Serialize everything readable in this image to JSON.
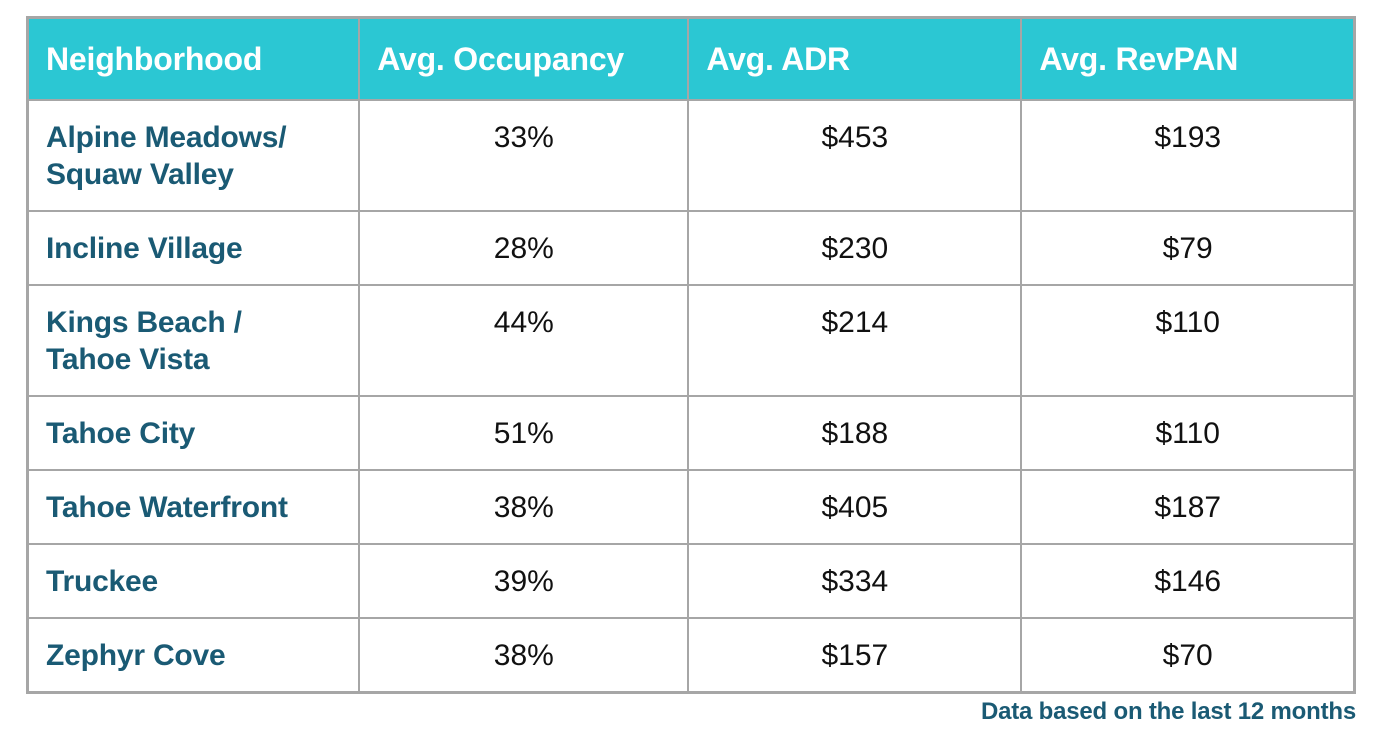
{
  "chart_data": {
    "type": "table",
    "columns": [
      "Neighborhood",
      "Avg. Occupancy",
      "Avg. ADR",
      "Avg. RevPAN"
    ],
    "rows": [
      {
        "neighborhood": "Alpine Meadows/\nSquaw Valley",
        "occupancy": "33%",
        "adr": "$453",
        "revpan": "$193"
      },
      {
        "neighborhood": "Incline Village",
        "occupancy": "28%",
        "adr": "$230",
        "revpan": "$79"
      },
      {
        "neighborhood": "Kings Beach /\nTahoe Vista",
        "occupancy": "44%",
        "adr": "$214",
        "revpan": "$110"
      },
      {
        "neighborhood": "Tahoe City",
        "occupancy": "51%",
        "adr": "$188",
        "revpan": "$110"
      },
      {
        "neighborhood": "Tahoe Waterfront",
        "occupancy": "38%",
        "adr": "$405",
        "revpan": "$187"
      },
      {
        "neighborhood": "Truckee",
        "occupancy": "39%",
        "adr": "$334",
        "revpan": "$146"
      },
      {
        "neighborhood": "Zephyr Cove",
        "occupancy": "38%",
        "adr": "$157",
        "revpan": "$70"
      }
    ],
    "numeric": {
      "occupancy_pct": [
        33,
        28,
        44,
        51,
        38,
        39,
        38
      ],
      "adr_usd": [
        453,
        230,
        214,
        188,
        405,
        334,
        157
      ],
      "revpan_usd": [
        193,
        79,
        110,
        110,
        187,
        146,
        70
      ]
    },
    "note": "Data based on the last 12 months"
  },
  "colors": {
    "header_bg": "#2bc7d3",
    "header_text": "#ffffff",
    "neighborhood_text": "#1a5a74",
    "value_text": "#111111",
    "border": "#a6a6a6",
    "footer_text": "#1a5a74"
  }
}
